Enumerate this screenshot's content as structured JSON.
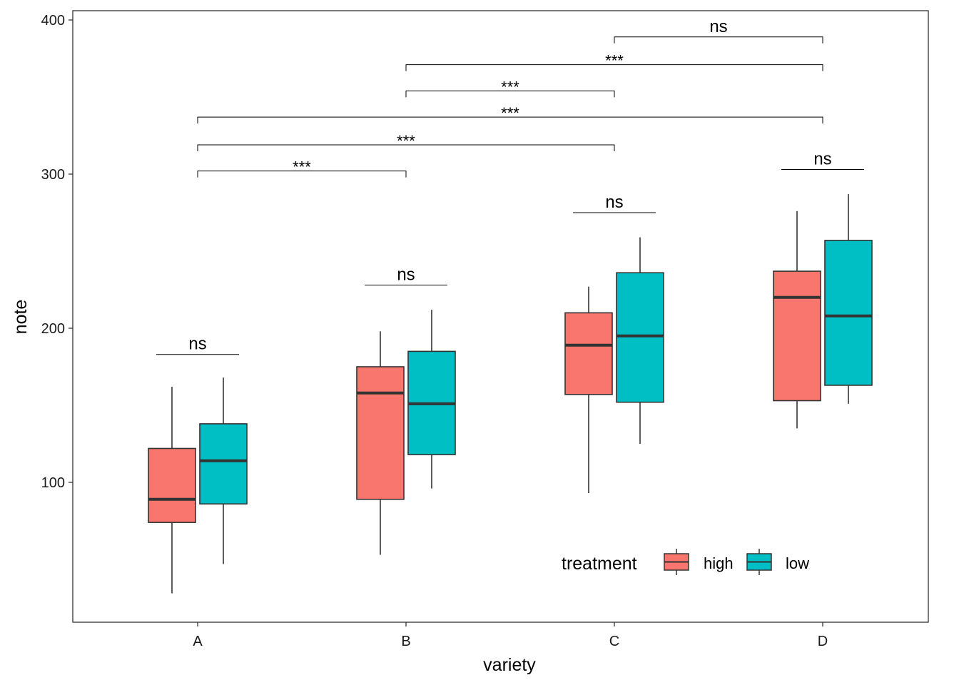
{
  "chart_data": {
    "type": "boxplot",
    "title": "",
    "xlabel": "variety",
    "ylabel": "note",
    "categories": [
      "A",
      "B",
      "C",
      "D"
    ],
    "ylim": [
      0,
      400
    ],
    "yticks": [
      100,
      200,
      300,
      400
    ],
    "grid": false,
    "legend": {
      "title": "treatment",
      "placement": "bottom-right inside",
      "items": [
        {
          "label": "high",
          "color": "#F8766D"
        },
        {
          "label": "low",
          "color": "#00BFC4"
        }
      ]
    },
    "series": [
      {
        "name": "high",
        "color": "#F8766D",
        "boxes": [
          {
            "category": "A",
            "min": 28,
            "q1": 74,
            "median": 89,
            "q3": 122,
            "max": 162
          },
          {
            "category": "B",
            "min": 53,
            "q1": 89,
            "median": 158,
            "q3": 175,
            "max": 198
          },
          {
            "category": "C",
            "min": 93,
            "q1": 157,
            "median": 189,
            "q3": 210,
            "max": 227
          },
          {
            "category": "D",
            "min": 135,
            "q1": 153,
            "median": 220,
            "q3": 237,
            "max": 276
          }
        ]
      },
      {
        "name": "low",
        "color": "#00BFC4",
        "boxes": [
          {
            "category": "A",
            "min": 47,
            "q1": 86,
            "median": 114,
            "q3": 138,
            "max": 168
          },
          {
            "category": "B",
            "min": 96,
            "q1": 118,
            "median": 151,
            "q3": 185,
            "max": 212
          },
          {
            "category": "C",
            "min": 125,
            "q1": 152,
            "median": 195,
            "q3": 236,
            "max": 259
          },
          {
            "category": "D",
            "min": 151,
            "q1": 163,
            "median": 208,
            "q3": 257,
            "max": 287
          }
        ]
      }
    ],
    "within_group_annotations": [
      {
        "category": "A",
        "label": "ns",
        "y": 183
      },
      {
        "category": "B",
        "label": "ns",
        "y": 228
      },
      {
        "category": "C",
        "label": "ns",
        "y": 275
      },
      {
        "category": "D",
        "label": "ns",
        "y": 303
      }
    ],
    "between_group_annotations": [
      {
        "from": "A",
        "to": "B",
        "label": "***",
        "y": 302
      },
      {
        "from": "A",
        "to": "C",
        "label": "***",
        "y": 319
      },
      {
        "from": "A",
        "to": "D",
        "label": "***",
        "y": 337
      },
      {
        "from": "B",
        "to": "C",
        "label": "***",
        "y": 354
      },
      {
        "from": "B",
        "to": "D",
        "label": "***",
        "y": 371
      },
      {
        "from": "C",
        "to": "D",
        "label": "ns",
        "y": 389
      }
    ]
  }
}
